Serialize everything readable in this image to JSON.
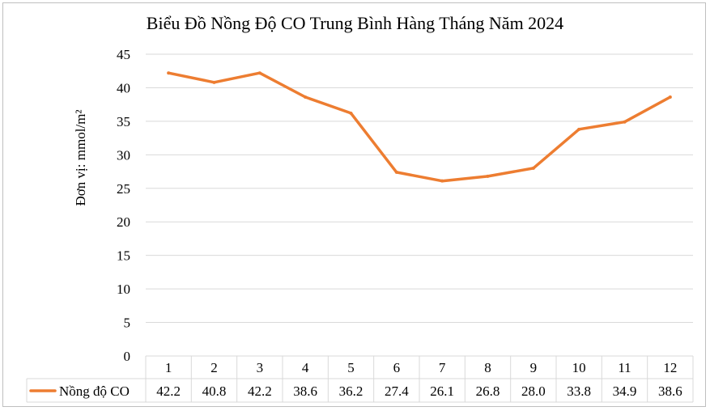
{
  "chart_data": {
    "type": "line",
    "title": "Biểu Đồ Nồng Độ CO Trung Bình Hàng Tháng Năm 2024",
    "ylabel": "Đơn vị: mmol/m²",
    "xlabel": "",
    "ylim": [
      0,
      45
    ],
    "yticks": [
      "0",
      "5",
      "10",
      "15",
      "20",
      "25",
      "30",
      "35",
      "40",
      "45"
    ],
    "categories": [
      "1",
      "2",
      "3",
      "4",
      "5",
      "6",
      "7",
      "8",
      "9",
      "10",
      "11",
      "12"
    ],
    "series": [
      {
        "name": "Nồng độ CO",
        "color": "#ED7D31",
        "values": [
          42.2,
          40.8,
          42.2,
          38.6,
          36.2,
          27.4,
          26.1,
          26.8,
          28.0,
          33.8,
          34.9,
          38.6
        ],
        "labels": [
          "42.2",
          "40.8",
          "42.2",
          "38.6",
          "36.2",
          "27.4",
          "26.1",
          "26.8",
          "28.0",
          "33.8",
          "34.9",
          "38.6"
        ]
      }
    ],
    "grid": true,
    "legend": "data-table"
  }
}
